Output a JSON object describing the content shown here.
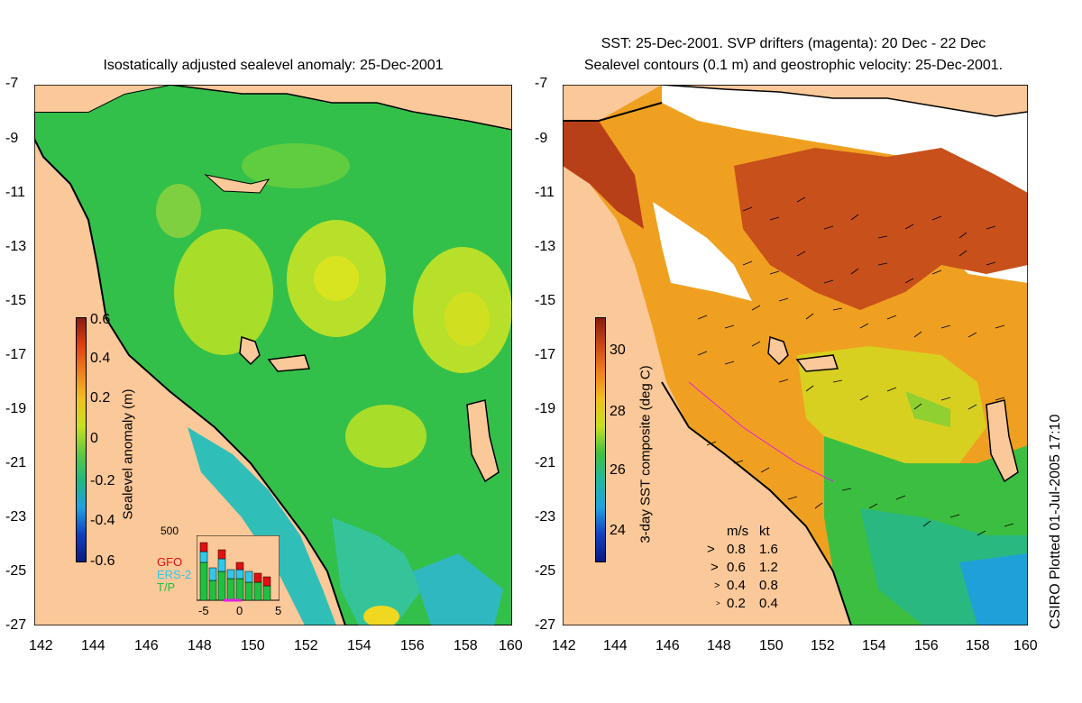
{
  "left_panel": {
    "title": "Isostatically adjusted sealevel anomaly: 25-Dec-2001",
    "y_ticks": [
      "-7",
      "-9",
      "-11",
      "-13",
      "-15",
      "-17",
      "-19",
      "-21",
      "-23",
      "-25",
      "-27"
    ],
    "x_ticks": [
      "142",
      "144",
      "146",
      "148",
      "150",
      "152",
      "154",
      "156",
      "158",
      "160"
    ],
    "colorbar": {
      "label": "Sealevel anomaly (m)",
      "ticks": [
        "0.6",
        "0.4",
        "0.2",
        "0",
        "-0.2",
        "-0.4",
        "-0.6"
      ]
    },
    "inset": {
      "max_label": "500",
      "legend": [
        {
          "name": "GFO",
          "color": "#e01010"
        },
        {
          "name": "ERS-2",
          "color": "#30c8e8"
        },
        {
          "name": "T/P",
          "color": "#20c040"
        }
      ],
      "x_ticks": [
        "-5",
        "0",
        "5"
      ]
    }
  },
  "right_panel": {
    "title_line1": "SST: 25-Dec-2001. SVP drifters (magenta): 20 Dec - 22 Dec",
    "title_line2": "Sealevel contours (0.1 m) and geostrophic velocity: 25-Dec-2001.",
    "y_ticks": [
      "-7",
      "-9",
      "-11",
      "-13",
      "-15",
      "-17",
      "-19",
      "-21",
      "-23",
      "-25",
      "-27"
    ],
    "x_ticks": [
      "142",
      "144",
      "146",
      "148",
      "150",
      "152",
      "154",
      "156",
      "158",
      "160"
    ],
    "colorbar": {
      "label": "3-day SST composite (deg C)",
      "ticks": [
        "30",
        "28",
        "26",
        "24"
      ]
    },
    "velocity_legend": {
      "header_ms": "m/s",
      "header_kt": "kt",
      "rows": [
        {
          "ms": "0.8",
          "kt": "1.6"
        },
        {
          "ms": "0.6",
          "kt": "1.2"
        },
        {
          "ms": "0.4",
          "kt": "0.8"
        },
        {
          "ms": "0.2",
          "kt": "0.4"
        }
      ]
    }
  },
  "credit": "CSIRO Plotted 01-Jul-2005 17:10",
  "colors": {
    "land": "#fbc899",
    "ocean_green": "#33c04a",
    "sst_orange": "#f0a020",
    "sst_red": "#c8501a"
  }
}
